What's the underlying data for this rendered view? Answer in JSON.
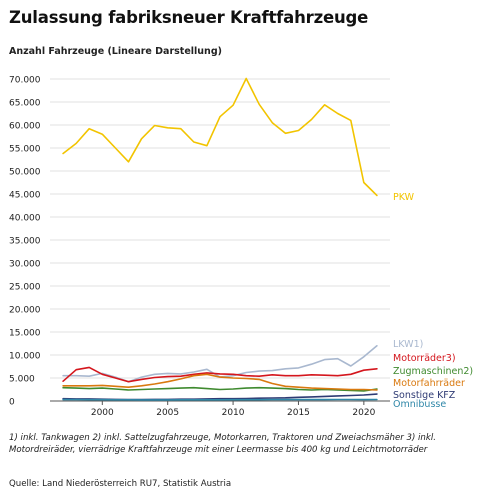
{
  "title": "Zulassung fabriksneuer Kraftfahrzeuge",
  "subtitle": "Anzahl Fahrzeuge (Lineare Darstellung)",
  "footnote": "1) inkl. Tankwagen 2) inkl. Sattelzugfahrzeuge, Motorkarren, Traktoren und Zweiachsmäher 3) inkl. Motordreiräder, vierrädrige Kraftfahrzeuge mit einer Leermasse bis 400 kg und Leichtmotorräder",
  "source": "Quelle: Land Niederösterreich RU7, Statistik Austria",
  "chart_data": {
    "type": "line",
    "x": [
      1997,
      1998,
      1999,
      2000,
      2001,
      2002,
      2003,
      2004,
      2005,
      2006,
      2007,
      2008,
      2009,
      2010,
      2011,
      2012,
      2013,
      2014,
      2015,
      2016,
      2017,
      2018,
      2019,
      2020,
      2021
    ],
    "xlim": [
      1996,
      2022
    ],
    "ylim": [
      0,
      70000
    ],
    "x_ticks": [
      2000,
      2005,
      2010,
      2015,
      2020
    ],
    "y_ticks": [
      0,
      5000,
      10000,
      15000,
      20000,
      25000,
      30000,
      35000,
      40000,
      45000,
      50000,
      55000,
      60000,
      65000,
      70000
    ],
    "y_tick_labels": [
      "0",
      "5.000",
      "10.000",
      "15.000",
      "20.000",
      "25.000",
      "30.000",
      "35.000",
      "40.000",
      "45.000",
      "50.000",
      "55.000",
      "60.000",
      "65.000",
      "70.000"
    ],
    "grid": "horizontal",
    "series": [
      {
        "name": "PKW",
        "color": "#f2c400",
        "values": [
          53800,
          56000,
          59200,
          58000,
          55000,
          52000,
          57000,
          59900,
          59400,
          59200,
          56300,
          55500,
          61800,
          64300,
          70100,
          64500,
          60500,
          58200,
          58800,
          61200,
          64400,
          62500,
          61000,
          47500,
          44700
        ]
      },
      {
        "name": "LKW1)",
        "color": "#a9b8cf",
        "values": [
          5500,
          5500,
          5400,
          6000,
          5200,
          4200,
          5200,
          5800,
          6000,
          5900,
          6300,
          6900,
          5200,
          5500,
          6200,
          6500,
          6600,
          7000,
          7200,
          8000,
          9000,
          9200,
          7600,
          9600,
          12000
        ]
      },
      {
        "name": "Motorräder3)",
        "color": "#d4161d",
        "values": [
          4300,
          6800,
          7300,
          5800,
          5000,
          4200,
          4700,
          5100,
          5300,
          5400,
          5800,
          6100,
          5900,
          5800,
          5500,
          5400,
          5700,
          5500,
          5500,
          5700,
          5600,
          5500,
          5800,
          6700,
          7000
        ]
      },
      {
        "name": "Zugmaschinen2)",
        "color": "#3f8a2f",
        "values": [
          2900,
          2800,
          2700,
          2800,
          2600,
          2400,
          2500,
          2600,
          2700,
          2800,
          2900,
          2700,
          2500,
          2600,
          2800,
          2900,
          2800,
          2700,
          2500,
          2400,
          2500,
          2400,
          2300,
          2200,
          2600
        ]
      },
      {
        "name": "Motorfahrräder",
        "color": "#d9790f",
        "values": [
          3300,
          3300,
          3300,
          3400,
          3200,
          3000,
          3300,
          3700,
          4200,
          4800,
          5500,
          5800,
          5200,
          5000,
          4900,
          4700,
          3800,
          3200,
          3000,
          2800,
          2700,
          2600,
          2500,
          2500,
          2400
        ]
      },
      {
        "name": "Sonstige KFZ",
        "color": "#2f3b74",
        "values": [
          500,
          450,
          450,
          400,
          350,
          300,
          300,
          350,
          350,
          400,
          400,
          450,
          500,
          500,
          550,
          600,
          650,
          700,
          800,
          900,
          1000,
          1100,
          1200,
          1300,
          1500
        ]
      },
      {
        "name": "Omnibusse",
        "color": "#2f87a8",
        "values": [
          300,
          300,
          280,
          280,
          270,
          260,
          250,
          250,
          250,
          260,
          270,
          270,
          270,
          280,
          280,
          290,
          300,
          300,
          300,
          310,
          310,
          320,
          320,
          300,
          330
        ]
      }
    ],
    "end_label_positions": {
      "PKW": "right",
      "LKW1)": "right",
      "Motorräder3)": "right",
      "Zugmaschinen2)": "right",
      "Motorfahrräder": "right",
      "Sonstige KFZ": "right",
      "Omnibusse": "right"
    }
  }
}
